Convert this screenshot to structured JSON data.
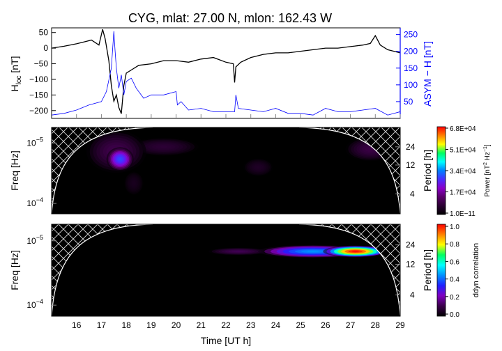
{
  "figure": {
    "title": "CYG, mlat:   27.00 N, mlon:  162.43 W",
    "xlabel": "Time [UT h]",
    "x_ticks": [
      "16",
      "17",
      "18",
      "19",
      "20",
      "21",
      "22",
      "23",
      "24",
      "25",
      "26",
      "27",
      "28",
      "29"
    ]
  },
  "chart_data": [
    {
      "type": "line",
      "panel": "top",
      "ylabel_left_main": "H",
      "ylabel_left_sub": "loc",
      "ylabel_left_unit": " [nT]",
      "ylabel_right": "ASYM − H [nT]",
      "xlim": [
        15.0,
        29.0
      ],
      "ylim_left": [
        -225,
        65
      ],
      "ylim_right": [
        0,
        270
      ],
      "y_ticks_left": [
        "50",
        "0",
        "−50",
        "−100",
        "−150",
        "−200"
      ],
      "y_ticks_right": [
        "250",
        "200",
        "150",
        "100",
        "50"
      ],
      "series": [
        {
          "axis": "left",
          "color": "#000000",
          "x": [
            15.0,
            15.5,
            16.0,
            16.3,
            16.6,
            16.9,
            17.05,
            17.15,
            17.3,
            17.4,
            17.5,
            17.6,
            17.7,
            17.8,
            17.9,
            18.0,
            18.2,
            18.5,
            19.0,
            19.5,
            20.0,
            20.5,
            21.0,
            21.5,
            22.0,
            22.3,
            22.35,
            22.4,
            22.6,
            23.0,
            23.5,
            24.0,
            24.5,
            25.0,
            25.5,
            26.0,
            26.5,
            27.0,
            27.5,
            27.8,
            28.0,
            28.2,
            28.5,
            29.0
          ],
          "y": [
            0,
            6,
            14,
            20,
            26,
            10,
            60,
            30,
            -40,
            -120,
            -170,
            -150,
            -190,
            -210,
            -120,
            -80,
            -70,
            -55,
            -50,
            -40,
            -40,
            -45,
            -35,
            -30,
            -45,
            -50,
            -110,
            -60,
            -45,
            -30,
            -20,
            -15,
            -15,
            -10,
            -5,
            0,
            0,
            5,
            10,
            15,
            40,
            10,
            -5,
            -15
          ]
        },
        {
          "axis": "right",
          "color": "#0000ff",
          "x": [
            15.0,
            15.5,
            16.0,
            16.5,
            17.0,
            17.2,
            17.4,
            17.5,
            17.55,
            17.6,
            17.7,
            17.8,
            17.9,
            18.0,
            18.2,
            18.4,
            18.7,
            19.0,
            19.5,
            20.0,
            20.05,
            20.2,
            20.5,
            21.0,
            21.5,
            22.0,
            22.35,
            22.4,
            22.5,
            23.0,
            23.5,
            24.0,
            24.5,
            25.0,
            25.5,
            26.0,
            26.5,
            27.0,
            27.5,
            28.0,
            28.5,
            29.0
          ],
          "y": [
            10,
            15,
            25,
            40,
            50,
            80,
            150,
            260,
            200,
            150,
            90,
            130,
            70,
            110,
            120,
            90,
            60,
            70,
            70,
            80,
            40,
            50,
            25,
            30,
            20,
            20,
            20,
            70,
            30,
            25,
            20,
            30,
            15,
            15,
            10,
            30,
            20,
            20,
            25,
            30,
            10,
            20
          ]
        }
      ]
    },
    {
      "type": "heatmap",
      "panel": "middle",
      "ylabel_left": "Freq [Hz]",
      "ylabel_right": "Period [h]",
      "y_ticks_left_base": [
        "10",
        "10"
      ],
      "y_ticks_left_exp": [
        "−5",
        "−4"
      ],
      "y_ticks_right": [
        "24",
        "12",
        "4"
      ],
      "colorbar_label_main": "Power [nT",
      "colorbar_label_sup": "2",
      "colorbar_label_rest": " Hz",
      "colorbar_label_sup2": "−1",
      "colorbar_label_end": "]",
      "colorbar_ticks": [
        "6.8E+04",
        "5.1E+04",
        "3.4E+04",
        "1.7E+04",
        "1.0E−11"
      ],
      "colorbar_range": [
        1e-11,
        68000
      ],
      "blobs": [
        {
          "time": 17.75,
          "period_h": 15,
          "t_width": 0.55,
          "p_width_log": 0.2,
          "value": 30000
        },
        {
          "time": 17.6,
          "period_h": 20,
          "t_width": 1.2,
          "p_width_log": 0.35,
          "value": 10000
        },
        {
          "time": 19.5,
          "period_h": 24,
          "t_width": 1.4,
          "p_width_log": 0.15,
          "value": 7000
        },
        {
          "time": 27.8,
          "period_h": 22,
          "t_width": 1.0,
          "p_width_log": 0.2,
          "value": 9000
        },
        {
          "time": 23.3,
          "period_h": 11,
          "t_width": 0.6,
          "p_width_log": 0.15,
          "value": 5000
        },
        {
          "time": 18.3,
          "period_h": 6,
          "t_width": 0.4,
          "p_width_log": 0.2,
          "value": 4000
        }
      ]
    },
    {
      "type": "heatmap",
      "panel": "bottom",
      "ylabel_left": "Freq [Hz]",
      "ylabel_right": "Period [h]",
      "y_ticks_left_base": [
        "10",
        "10"
      ],
      "y_ticks_left_exp": [
        "−5",
        "−4"
      ],
      "y_ticks_right": [
        "24",
        "12",
        "4"
      ],
      "colorbar_label": "ddyn correlation",
      "colorbar_ticks": [
        "1.0",
        "0.8",
        "0.6",
        "0.4",
        "0.2",
        "0.0"
      ],
      "colorbar_range": [
        0.0,
        1.0
      ],
      "blobs": [
        {
          "time": 27.2,
          "period_h": 19,
          "t_width": 1.3,
          "p_width_log": 0.09,
          "value": 1.0
        },
        {
          "time": 25.5,
          "period_h": 19,
          "t_width": 2.2,
          "p_width_log": 0.1,
          "value": 0.45
        },
        {
          "time": 22.5,
          "period_h": 19,
          "t_width": 1.2,
          "p_width_log": 0.06,
          "value": 0.12
        }
      ]
    }
  ],
  "colors": {
    "power_colormap": [
      "#000000",
      "#2a0033",
      "#5a006a",
      "#8a00c8",
      "#4a2cff",
      "#0080ff",
      "#00ffff",
      "#00ff60",
      "#ffff00",
      "#ff8000",
      "#ff0000"
    ],
    "correlation_colormap": [
      "#000000",
      "#3a004a",
      "#8000c0",
      "#2020ff",
      "#0090ff",
      "#00ffff",
      "#00ff60",
      "#ffff00",
      "#ff8000",
      "#ff0000"
    ],
    "coi_hatch": "#d9d9d9"
  }
}
